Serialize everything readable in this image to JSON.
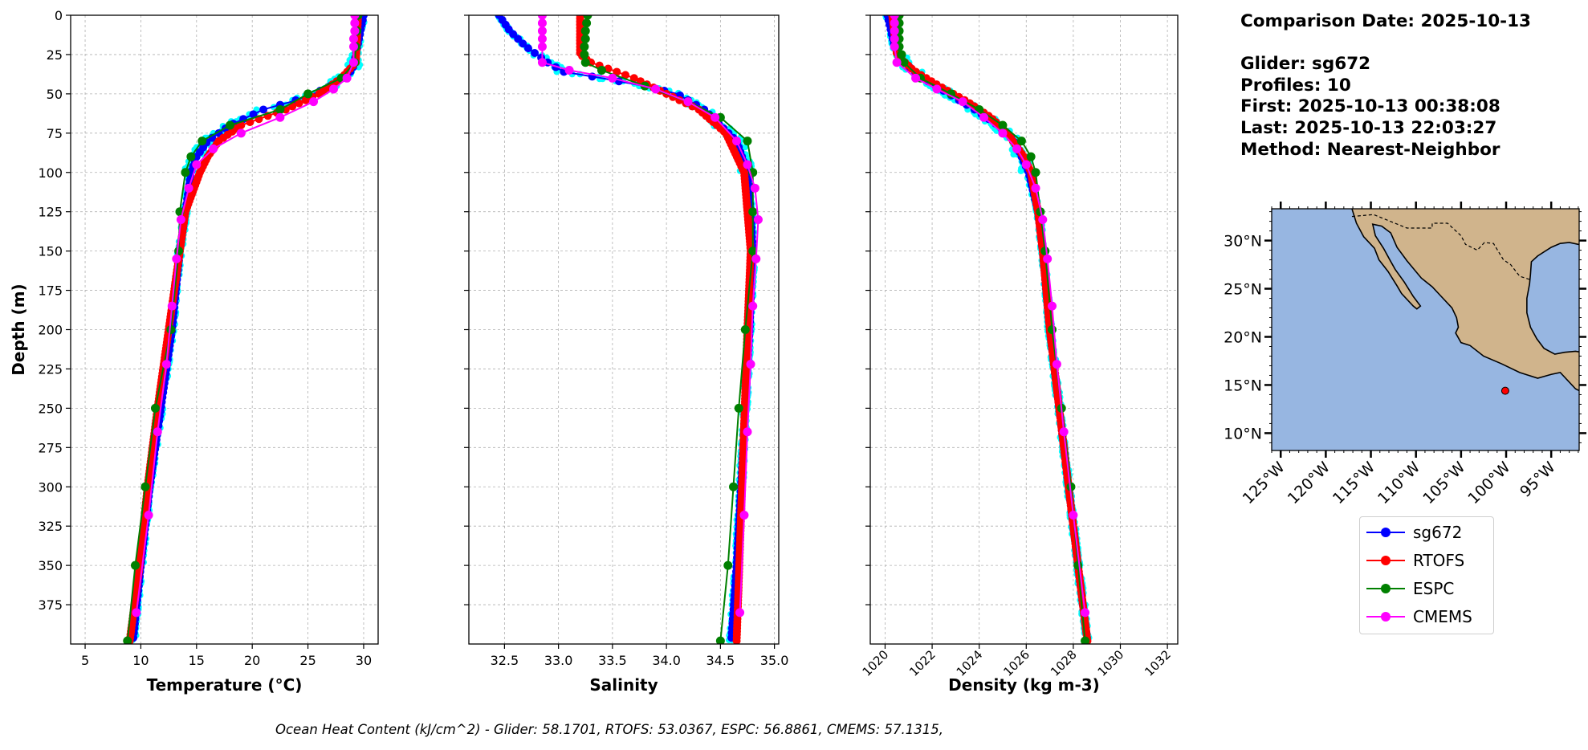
{
  "info": {
    "comparison_date": "Comparison Date: 2025-10-13",
    "glider": "Glider: sg672",
    "profiles": "Profiles: 10",
    "first": "First: 2025-10-13 00:38:08",
    "last": "Last: 2025-10-13 22:03:27",
    "method": "Method: Nearest-Neighbor"
  },
  "caption": "Ocean Heat Content (kJ/cm^2) - Glider: 58.1701,  RTOFS: 53.0367,  ESPC: 56.8861,  CMEMS: 57.1315,",
  "legend": [
    {
      "name": "sg672",
      "color": "#0000ff"
    },
    {
      "name": "RTOFS",
      "color": "#ff0000"
    },
    {
      "name": "ESPC",
      "color": "#008000"
    },
    {
      "name": "CMEMS",
      "color": "#ff00ff"
    }
  ],
  "colors": {
    "glider_raw": "#00ffff",
    "grid": "#b0b0b0",
    "ocean": "#97b6e1",
    "land": "#d0b48c"
  },
  "chart_data": [
    {
      "type": "line",
      "xlabel": "Temperature (°C)",
      "ylabel": "Depth (m)",
      "xlim": [
        3.7,
        31.3
      ],
      "ylim": [
        400,
        0
      ],
      "xticks": [
        5,
        10,
        15,
        20,
        25,
        30
      ],
      "yticks": [
        0,
        25,
        50,
        75,
        100,
        125,
        150,
        175,
        200,
        225,
        250,
        275,
        300,
        325,
        350,
        375
      ],
      "grid": true,
      "series": [
        {
          "name": "sg672",
          "depth": [
            0,
            25,
            35,
            45,
            50,
            55,
            60,
            70,
            80,
            90,
            100,
            125,
            150,
            200,
            250,
            300,
            350,
            398
          ],
          "values": [
            30,
            29.3,
            29,
            27,
            25.5,
            23.5,
            21,
            18,
            16,
            15,
            14.5,
            14,
            13.5,
            12.8,
            11.8,
            10.8,
            10,
            9.3
          ]
        },
        {
          "name": "RTOFS",
          "depth": [
            0,
            30,
            40,
            50,
            60,
            70,
            80,
            90,
            100,
            125,
            150,
            200,
            250,
            300,
            350,
            398
          ],
          "values": [
            29.5,
            29.3,
            28,
            26,
            23,
            19,
            17,
            16,
            15.3,
            14,
            13.5,
            12.5,
            11.5,
            10.6,
            9.9,
            9
          ]
        },
        {
          "name": "ESPC",
          "depth": [
            0,
            10,
            20,
            30,
            40,
            50,
            60,
            70,
            80,
            90,
            100,
            125,
            150,
            200,
            250,
            300,
            350,
            398
          ],
          "values": [
            29.5,
            29.4,
            29.3,
            29.2,
            28,
            25,
            22.5,
            18,
            15.5,
            14.5,
            14,
            13.5,
            13.4,
            12.7,
            11.3,
            10.4,
            9.5,
            8.8
          ]
        },
        {
          "name": "CMEMS",
          "depth": [
            0,
            5,
            10,
            15,
            20,
            30,
            40,
            47,
            55,
            65,
            75,
            85,
            95,
            110,
            130,
            155,
            185,
            222,
            265,
            318,
            380
          ],
          "values": [
            29.2,
            29.2,
            29.2,
            29.1,
            29.1,
            29.1,
            28.5,
            27.3,
            25.5,
            22.5,
            19,
            16.5,
            15,
            14.3,
            13.6,
            13.2,
            12.8,
            12.3,
            11.5,
            10.7,
            9.6
          ]
        }
      ]
    },
    {
      "type": "line",
      "xlabel": "Salinity",
      "xlim": [
        32.17,
        35.04
      ],
      "ylim": [
        400,
        0
      ],
      "xticks": [
        32.5,
        33.0,
        33.5,
        34.0,
        34.5,
        35.0
      ],
      "yticks": [
        0,
        25,
        50,
        75,
        100,
        125,
        150,
        175,
        200,
        225,
        250,
        275,
        300,
        325,
        350,
        375
      ],
      "grid": true,
      "series": [
        {
          "name": "sg672",
          "depth": [
            0,
            10,
            20,
            30,
            36,
            40,
            45,
            50,
            60,
            70,
            80,
            100,
            125,
            150,
            200,
            250,
            300,
            350,
            398
          ],
          "values": [
            32.45,
            32.55,
            32.7,
            32.9,
            33.05,
            33.4,
            33.8,
            34.1,
            34.35,
            34.5,
            34.65,
            34.75,
            34.78,
            34.8,
            34.77,
            34.73,
            34.69,
            34.65,
            34.6
          ]
        },
        {
          "name": "RTOFS",
          "depth": [
            0,
            25,
            30,
            40,
            50,
            60,
            75,
            100,
            150,
            200,
            300,
            398
          ],
          "values": [
            33.2,
            33.2,
            33.3,
            33.7,
            34.0,
            34.3,
            34.55,
            34.72,
            34.78,
            34.75,
            34.7,
            34.65
          ]
        },
        {
          "name": "ESPC",
          "depth": [
            0,
            5,
            10,
            15,
            20,
            25,
            30,
            35,
            45,
            55,
            65,
            80,
            100,
            125,
            150,
            200,
            250,
            300,
            350,
            398
          ],
          "values": [
            33.27,
            33.26,
            33.25,
            33.25,
            33.24,
            33.24,
            33.25,
            33.4,
            33.8,
            34.2,
            34.5,
            34.75,
            34.8,
            34.8,
            34.8,
            34.73,
            34.67,
            34.62,
            34.57,
            34.5
          ]
        },
        {
          "name": "CMEMS",
          "depth": [
            0,
            5,
            10,
            15,
            20,
            30,
            35,
            40,
            47,
            55,
            65,
            80,
            95,
            110,
            130,
            155,
            185,
            222,
            265,
            318,
            380
          ],
          "values": [
            32.85,
            32.85,
            32.85,
            32.85,
            32.85,
            32.85,
            33.1,
            33.5,
            33.9,
            34.2,
            34.45,
            34.65,
            34.75,
            34.82,
            34.85,
            34.83,
            34.8,
            34.78,
            34.75,
            34.72,
            34.68
          ]
        }
      ]
    },
    {
      "type": "line",
      "xlabel": "Density (kg m-3)",
      "xlim": [
        1019.37,
        1032.44
      ],
      "ylim": [
        400,
        0
      ],
      "xticks": [
        1020,
        1022,
        1024,
        1026,
        1028,
        1030,
        1032
      ],
      "yticks": [
        0,
        25,
        50,
        75,
        100,
        125,
        150,
        175,
        200,
        225,
        250,
        275,
        300,
        325,
        350,
        375
      ],
      "grid": true,
      "series": [
        {
          "name": "sg672",
          "depth": [
            0,
            20,
            30,
            40,
            50,
            60,
            70,
            80,
            100,
            125,
            150,
            200,
            250,
            300,
            350,
            398
          ],
          "values": [
            1020.1,
            1020.4,
            1020.8,
            1021.6,
            1022.7,
            1023.8,
            1024.8,
            1025.5,
            1026.1,
            1026.5,
            1026.7,
            1027.0,
            1027.4,
            1027.8,
            1028.2,
            1028.6
          ]
        },
        {
          "name": "RTOFS",
          "depth": [
            0,
            25,
            35,
            45,
            55,
            65,
            75,
            90,
            100,
            125,
            150,
            200,
            250,
            300,
            350,
            398
          ],
          "values": [
            1020.3,
            1020.5,
            1021.2,
            1022.3,
            1023.5,
            1024.5,
            1025.2,
            1025.9,
            1026.2,
            1026.5,
            1026.7,
            1027.0,
            1027.4,
            1027.8,
            1028.2,
            1028.6
          ]
        },
        {
          "name": "ESPC",
          "depth": [
            0,
            5,
            10,
            15,
            20,
            25,
            30,
            40,
            50,
            60,
            70,
            80,
            90,
            100,
            125,
            150,
            200,
            250,
            300,
            350,
            398
          ],
          "values": [
            1020.6,
            1020.6,
            1020.6,
            1020.6,
            1020.6,
            1020.7,
            1020.8,
            1021.5,
            1022.8,
            1024.0,
            1025.0,
            1025.8,
            1026.2,
            1026.4,
            1026.6,
            1026.8,
            1027.1,
            1027.5,
            1027.9,
            1028.2,
            1028.5
          ]
        },
        {
          "name": "CMEMS",
          "depth": [
            0,
            5,
            10,
            15,
            20,
            30,
            40,
            47,
            55,
            65,
            75,
            85,
            95,
            110,
            130,
            155,
            185,
            222,
            265,
            318,
            380
          ],
          "values": [
            1020.4,
            1020.4,
            1020.4,
            1020.4,
            1020.4,
            1020.5,
            1021.3,
            1022.2,
            1023.3,
            1024.2,
            1025.0,
            1025.6,
            1026.0,
            1026.4,
            1026.7,
            1026.9,
            1027.1,
            1027.3,
            1027.6,
            1028.0,
            1028.5
          ]
        }
      ]
    }
  ],
  "map": {
    "lon_ticks": [
      "125°W",
      "120°W",
      "115°W",
      "110°W",
      "105°W",
      "100°W",
      "95°W"
    ],
    "lat_ticks": [
      "10°N",
      "15°N",
      "20°N",
      "25°N",
      "30°N"
    ],
    "glider_position": {
      "lon": -100.1,
      "lat": 14.4
    }
  }
}
